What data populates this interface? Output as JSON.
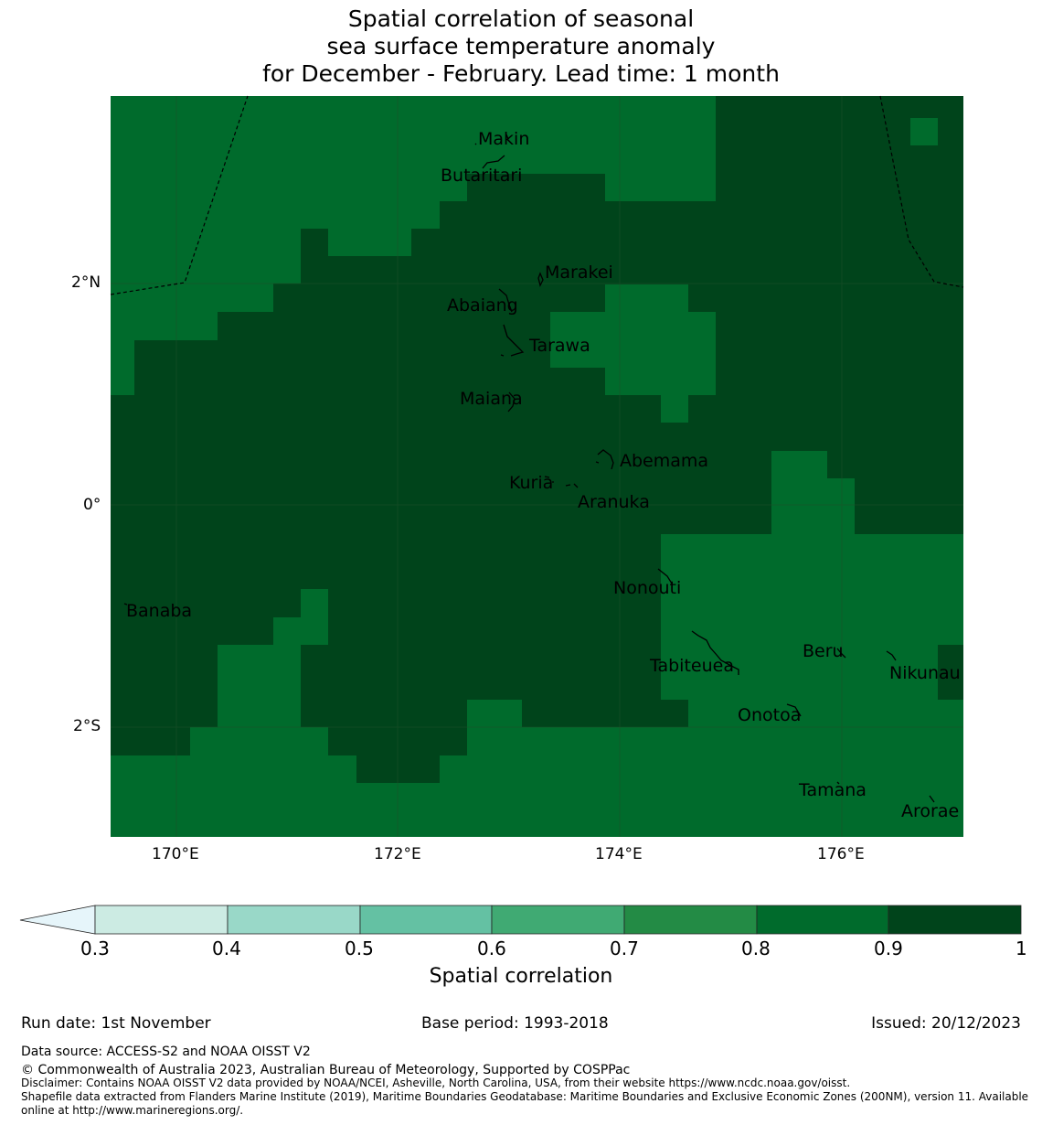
{
  "title": {
    "line1": "Spatial correlation of seasonal",
    "line2": "sea surface temperature anomaly",
    "line3": "for December - February. Lead time: 1 month"
  },
  "colors": {
    "c08_09": "#006b2c",
    "c09_10": "#00441b",
    "grid": "#1f4f2a",
    "boundary": "#000000",
    "cb": [
      "#e6f5fa",
      "#ccebe3",
      "#99d8c8",
      "#64c1a3",
      "#40aa73",
      "#238b45",
      "#006b2c",
      "#00441b"
    ]
  },
  "axes": {
    "x_ticks": [
      "170°E",
      "172°E",
      "174°E",
      "176°E"
    ],
    "y_ticks": [
      "2°N",
      "0°",
      "2°S"
    ]
  },
  "islands": {
    "makin": "Makin",
    "butaritari": "Butaritari",
    "marakei": "Marakei",
    "abaiang": "Abaiang",
    "tarawa": "Tarawa",
    "maiana": "Maiana",
    "abemama": "Abemama",
    "kuria": "Kuria",
    "aranuka": "Aranuka",
    "nonouti": "Nonouti",
    "banaba": "Banaba",
    "beru": "Beru",
    "tabiteuea": "Tabiteuea",
    "nikunau": "Nikunau",
    "onotoa": "Onotoa",
    "tamana": "Tamana",
    "arorae": "Arorae"
  },
  "colorbar": {
    "ticks": [
      "0.3",
      "0.4",
      "0.5",
      "0.6",
      "0.7",
      "0.8",
      "0.9",
      "1"
    ],
    "label": "Spatial correlation"
  },
  "footer": {
    "run_date": "Run date: 1st November",
    "base_period": "Base period: 1993-2018",
    "issued": "Issued: 20/12/2023",
    "data_source": "Data source: ACCESS-S2 and NOAA OISST V2",
    "copyright": "© Commonwealth of Australia 2023, Australian Bureau of Meteorology, Supported by COSPPac",
    "disclaimer": "Disclaimer: Contains NOAA OISST V2 data provided by NOAA/NCEI, Asheville, North Carolina, USA, from their website https://www.ncdc.noaa.gov/oisst.",
    "shapefile1": "Shapefile data extracted from Flanders Marine Institute (2019), Maritime Boundaries Geodatabase: Maritime Boundaries and Exclusive Economic Zones (200NM), version 11. Available",
    "shapefile2": "online at http://www.marineregions.org/."
  }
}
